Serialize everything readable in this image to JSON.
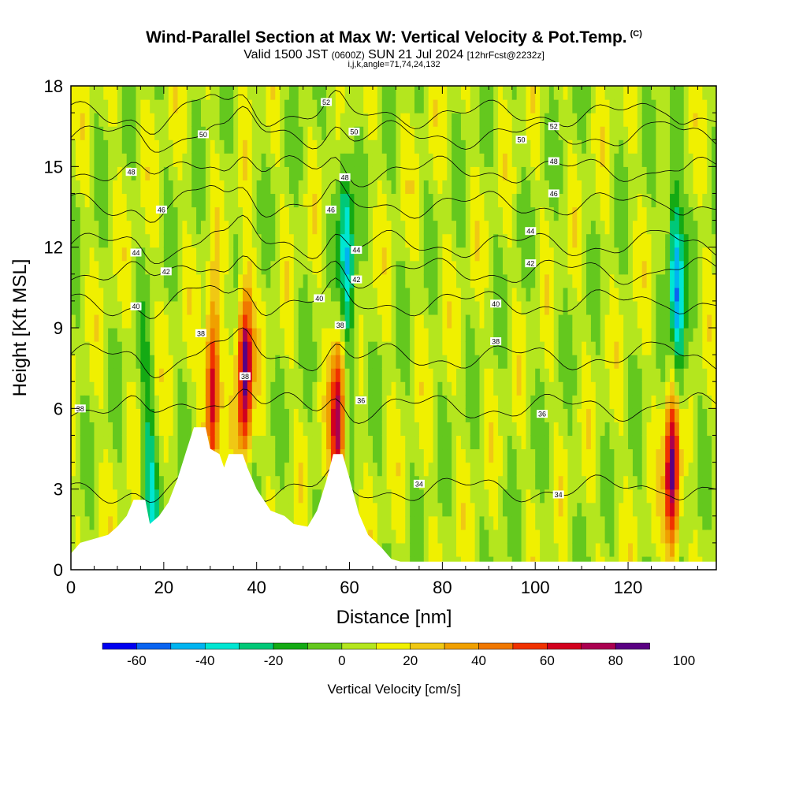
{
  "header": {
    "title": "Wind-Parallel Section at Max W: Vertical Velocity & Pot.Temp.",
    "copyright": "(C)",
    "valid_prefix": "Valid 1500 JST",
    "valid_zulu": "(0600Z)",
    "valid_date": "SUN 21 Jul 2024",
    "forecast": "[12hrFcst@2232z]",
    "indices": "i,j,k,angle=71,74,24,132"
  },
  "colors": {
    "palette": [
      "#0000f0",
      "#0a64f0",
      "#00b4f0",
      "#00e6d2",
      "#00c878",
      "#14aa14",
      "#64c81e",
      "#b4e61e",
      "#f0f000",
      "#f0c814",
      "#f0a000",
      "#f07800",
      "#f03200",
      "#d2001e",
      "#aa0050",
      "#5a0082"
    ],
    "terrain": "#ffffff",
    "contour": "#000000"
  },
  "chart_data": {
    "type": "heatmap",
    "xlabel": "Distance [nm]",
    "ylabel": "Height [Kft MSL]",
    "xlim": [
      0,
      139
    ],
    "ylim": [
      0,
      18
    ],
    "xticks": [
      0,
      20,
      40,
      60,
      80,
      100,
      120
    ],
    "yticks": [
      0,
      3,
      6,
      9,
      12,
      15,
      18
    ],
    "shaded_field": "Vertical Velocity [cm/s]",
    "colorbar": {
      "title": "Vertical Velocity [cm/s]",
      "levels": [
        -70,
        -60,
        -50,
        -40,
        -30,
        -20,
        -10,
        0,
        10,
        20,
        30,
        40,
        50,
        60,
        70,
        80,
        90,
        100
      ],
      "tick_labels": [
        "-60",
        "-40",
        "-20",
        "0",
        "20",
        "40",
        "60",
        "80",
        "100"
      ]
    },
    "updraft_cores": [
      {
        "x": 30.5,
        "y": 6.8,
        "w_max": 75
      },
      {
        "x": 37.5,
        "y": 7.5,
        "w_max": 85
      },
      {
        "x": 57.5,
        "y": 5.5,
        "w_max": 70
      },
      {
        "x": 129.5,
        "y": 3.5,
        "w_max": 85
      }
    ],
    "downdraft_cores": [
      {
        "x": 59.5,
        "y": 11.5,
        "w_min": -50
      },
      {
        "x": 130.5,
        "y": 10.5,
        "w_min": -60
      },
      {
        "x": 17,
        "y": 3.0,
        "w_min": -35
      }
    ],
    "terrain_profile": [
      [
        0,
        0.6
      ],
      [
        2,
        1.0
      ],
      [
        8,
        1.3
      ],
      [
        10,
        1.6
      ],
      [
        12,
        2.0
      ],
      [
        13.5,
        2.6
      ],
      [
        16,
        2.6
      ],
      [
        17,
        1.7
      ],
      [
        19,
        2.0
      ],
      [
        21,
        2.5
      ],
      [
        23,
        3.4
      ],
      [
        25,
        4.5
      ],
      [
        26.5,
        5.3
      ],
      [
        29,
        5.3
      ],
      [
        30,
        4.5
      ],
      [
        32,
        4.3
      ],
      [
        33,
        3.8
      ],
      [
        34,
        4.3
      ],
      [
        37,
        4.3
      ],
      [
        38,
        3.8
      ],
      [
        40,
        3.0
      ],
      [
        43,
        2.2
      ],
      [
        46,
        2.0
      ],
      [
        48,
        1.7
      ],
      [
        51,
        1.6
      ],
      [
        53,
        2.2
      ],
      [
        55,
        3.3
      ],
      [
        56.5,
        4.3
      ],
      [
        58.5,
        4.3
      ],
      [
        60,
        3.4
      ],
      [
        62,
        2.1
      ],
      [
        64,
        1.3
      ],
      [
        67,
        0.8
      ],
      [
        69,
        0.4
      ],
      [
        71,
        0.3
      ],
      [
        139,
        0.3
      ]
    ],
    "theta_contours": {
      "field": "Pot.Temp.",
      "labels": [
        {
          "text": "52",
          "x": 55,
          "y": 17.4
        },
        {
          "text": "52",
          "x": 104,
          "y": 16.5
        },
        {
          "text": "50",
          "x": 28.5,
          "y": 16.2
        },
        {
          "text": "50",
          "x": 61,
          "y": 16.3
        },
        {
          "text": "50",
          "x": 97,
          "y": 16.0
        },
        {
          "text": "48",
          "x": 13,
          "y": 14.8
        },
        {
          "text": "48",
          "x": 59,
          "y": 14.6
        },
        {
          "text": "48",
          "x": 104,
          "y": 15.2
        },
        {
          "text": "46",
          "x": 19.5,
          "y": 13.4
        },
        {
          "text": "46",
          "x": 56,
          "y": 13.4
        },
        {
          "text": "46",
          "x": 104,
          "y": 14.0
        },
        {
          "text": "44",
          "x": 14,
          "y": 11.8
        },
        {
          "text": "44",
          "x": 61.5,
          "y": 11.9
        },
        {
          "text": "44",
          "x": 99,
          "y": 12.6
        },
        {
          "text": "42",
          "x": 20.5,
          "y": 11.1
        },
        {
          "text": "42",
          "x": 61.5,
          "y": 10.8
        },
        {
          "text": "42",
          "x": 99,
          "y": 11.4
        },
        {
          "text": "40",
          "x": 14,
          "y": 9.8
        },
        {
          "text": "40",
          "x": 53.5,
          "y": 10.1
        },
        {
          "text": "40",
          "x": 91.5,
          "y": 9.9
        },
        {
          "text": "38",
          "x": 28,
          "y": 8.8
        },
        {
          "text": "38",
          "x": 58,
          "y": 9.1
        },
        {
          "text": "38",
          "x": 91.5,
          "y": 8.5
        },
        {
          "text": "38",
          "x": 2,
          "y": 6.0
        },
        {
          "text": "38",
          "x": 37.5,
          "y": 7.2
        },
        {
          "text": "36",
          "x": 62.5,
          "y": 6.3
        },
        {
          "text": "36",
          "x": 101.5,
          "y": 5.8
        },
        {
          "text": "34",
          "x": 75,
          "y": 3.2
        },
        {
          "text": "34",
          "x": 105,
          "y": 2.8
        }
      ]
    }
  }
}
